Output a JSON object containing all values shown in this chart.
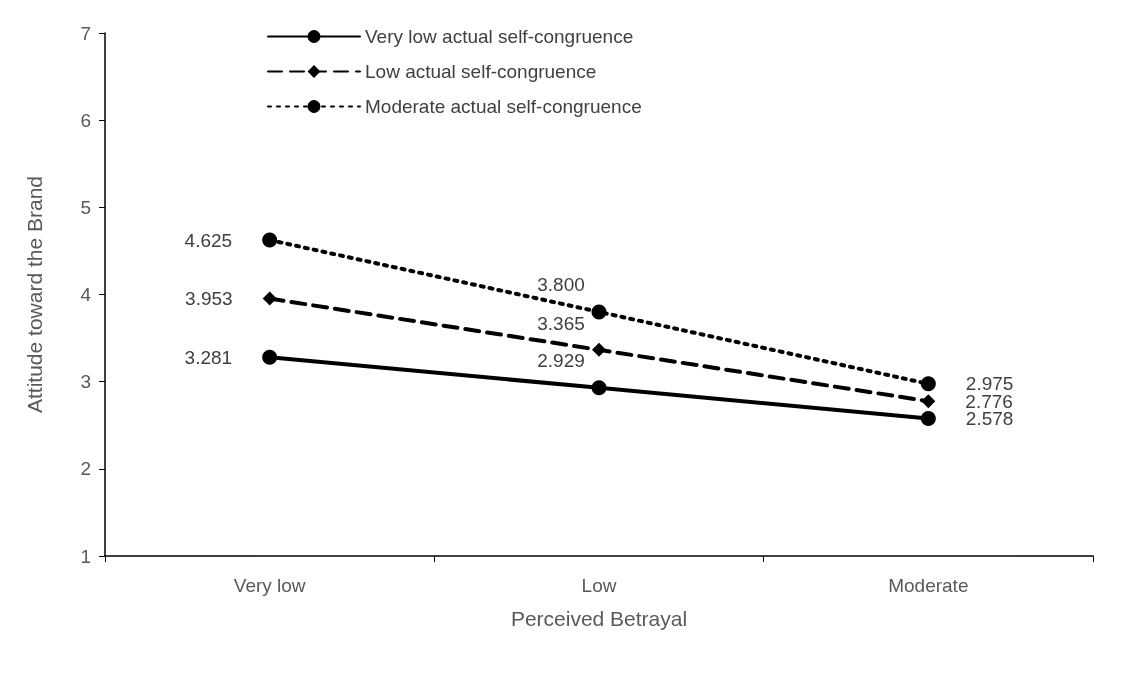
{
  "chart_data": {
    "type": "line",
    "xlabel": "Perceived Betrayal",
    "ylabel": "Attitude toward the Brand",
    "categories": [
      "Very low",
      "Low",
      "Moderate"
    ],
    "series": [
      {
        "name": "Very low actual self-congruence",
        "color": "#000000",
        "marker": "circle",
        "line_style": "solid",
        "values": [
          3.281,
          2.929,
          2.578
        ],
        "value_labels": [
          "3.281",
          "2.929",
          "2.578"
        ]
      },
      {
        "name": "Low actual self-congruence",
        "color": "#000000",
        "marker": "diamond",
        "line_style": "dashed",
        "values": [
          3.953,
          3.365,
          2.776
        ],
        "value_labels": [
          "3.953",
          "3.365",
          "2.776"
        ]
      },
      {
        "name": "Moderate actual self-congruence",
        "color": "#000000",
        "marker": "circle",
        "line_style": "dotted",
        "values": [
          4.625,
          3.8,
          2.975
        ],
        "value_labels": [
          "4.625",
          "3.800",
          "2.975"
        ]
      }
    ],
    "ylim": [
      1,
      7
    ],
    "yticks": [
      1,
      2,
      3,
      4,
      5,
      6,
      7
    ],
    "grid": false,
    "legend": "top left"
  }
}
